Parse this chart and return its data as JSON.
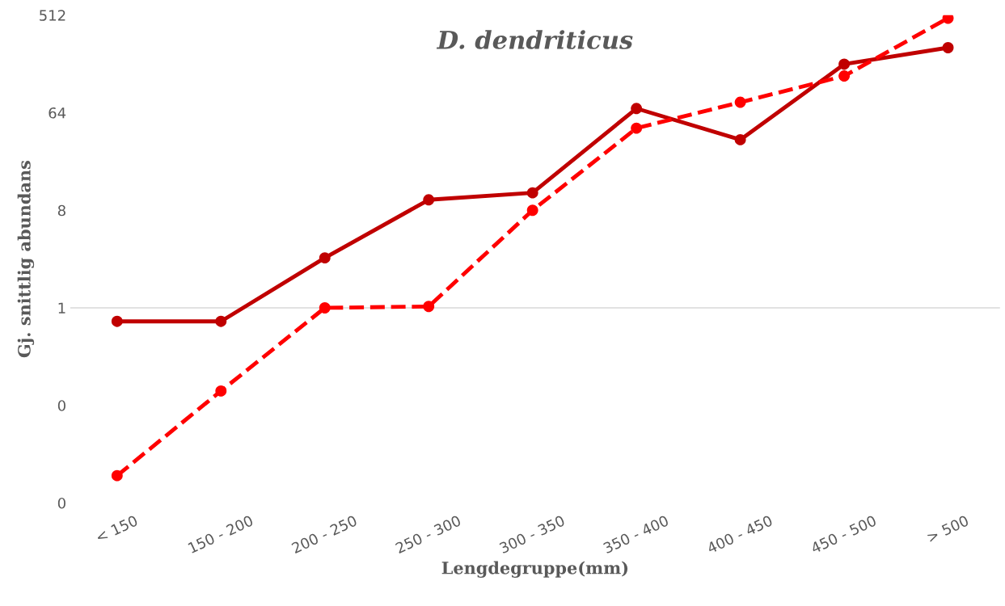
{
  "chart_data": {
    "type": "line",
    "title": "D. dendriticus",
    "xlabel": "Lengdegruppe(mm)",
    "ylabel": "Gj. snittlig abundans",
    "categories": [
      "< 150",
      "150 - 200",
      "200 - 250",
      "250 - 300",
      "300 - 350",
      "350 - 400",
      "400 - 450",
      "450 - 500",
      "> 500"
    ],
    "series": [
      {
        "color": "#c00000",
        "line_style": "solid",
        "values": [
          0.75,
          0.75,
          2.9,
          10,
          11.6,
          70,
          36,
          180,
          256
        ]
      },
      {
        "color": "#ff0000",
        "line_style": "dashed",
        "values": [
          0.028,
          0.17,
          1,
          1.03,
          8,
          46,
          80,
          140,
          480
        ]
      }
    ],
    "log": "y",
    "ylim": [
      0.015625,
      512
    ],
    "yticks": [
      {
        "value": 0.015625,
        "label": "0"
      },
      {
        "value": 0.125,
        "label": "0"
      },
      1,
      8,
      64,
      512
    ],
    "ref_lines": [
      {
        "axis": "y",
        "value": 1,
        "color": "#d9d9d9"
      }
    ],
    "grid": false,
    "legend": false,
    "marker": "circle"
  }
}
